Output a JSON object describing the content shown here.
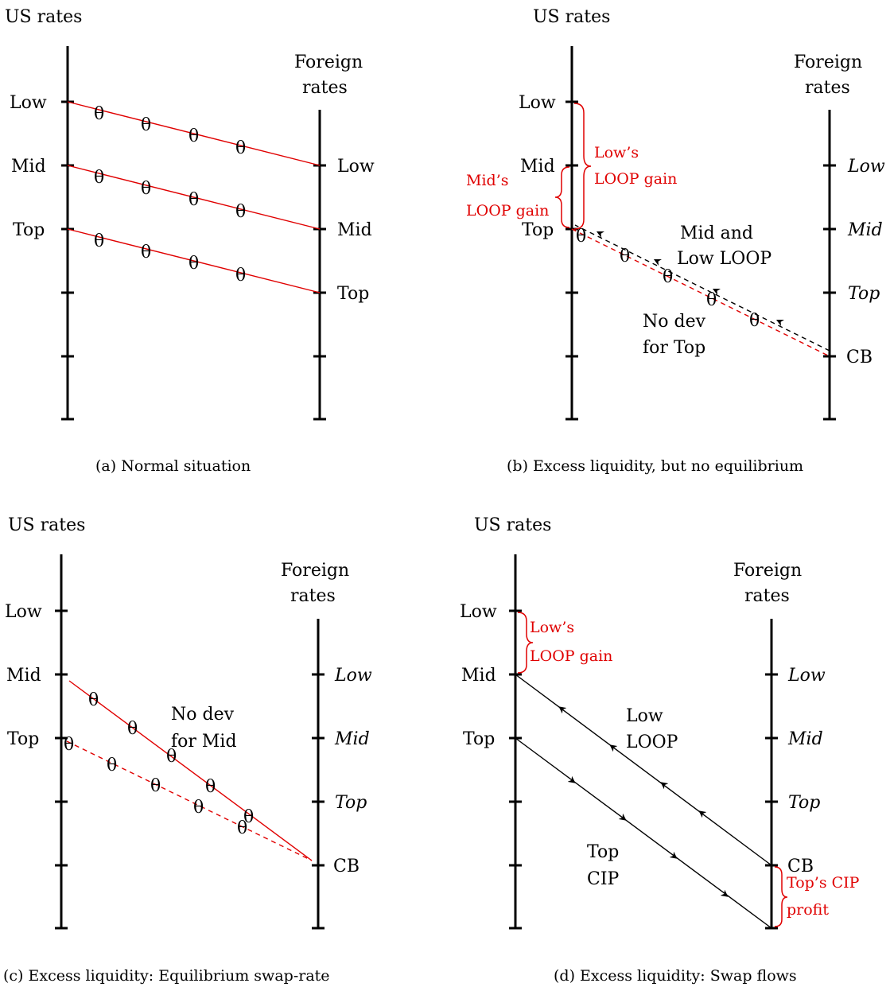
{
  "axes": {
    "us_title": "US rates",
    "foreign_title_line1": "Foreign",
    "foreign_title_line2": "rates"
  },
  "theta": "θ",
  "panel_a": {
    "caption": "(a) Normal situation",
    "us_labels": [
      "Low",
      "Mid",
      "Top"
    ],
    "foreign_labels": [
      "Low",
      "Mid",
      "Top"
    ]
  },
  "panel_b": {
    "caption": "(b) Excess liquidity, but no equilibrium",
    "us_labels": [
      "Low",
      "Mid",
      "Top"
    ],
    "foreign_labels": [
      "Low",
      "Mid",
      "Top",
      "CB"
    ],
    "low_gain_line1": "Low’s",
    "low_gain_line2": "LOOP gain",
    "mid_gain_line1": "Mid’s",
    "mid_gain_line2": "LOOP gain",
    "mid_low_line1": "Mid and",
    "mid_low_line2": "Low LOOP",
    "no_dev_line1": "No dev",
    "no_dev_line2": "for Top"
  },
  "panel_c": {
    "caption": "(c) Excess liquidity: Equilibrium swap-rate",
    "us_labels": [
      "Low",
      "Mid",
      "Top"
    ],
    "foreign_labels": [
      "Low",
      "Mid",
      "Top",
      "CB"
    ],
    "no_dev_line1": "No dev",
    "no_dev_line2": "for Mid"
  },
  "panel_d": {
    "caption": "(d) Excess liquidity: Swap flows",
    "us_labels": [
      "Low",
      "Mid",
      "Top"
    ],
    "foreign_labels": [
      "Low",
      "Mid",
      "Top",
      "CB"
    ],
    "low_gain_line1": "Low’s",
    "low_gain_line2": "LOOP gain",
    "low_loop_line1": "Low",
    "low_loop_line2": "LOOP",
    "top_cip_line1": "Top",
    "top_cip_line2": "CIP",
    "cip_profit_line1": "Top’s CIP",
    "cip_profit_line2": "profit"
  },
  "colors": {
    "line": "#000000",
    "accent": "#e00000"
  }
}
